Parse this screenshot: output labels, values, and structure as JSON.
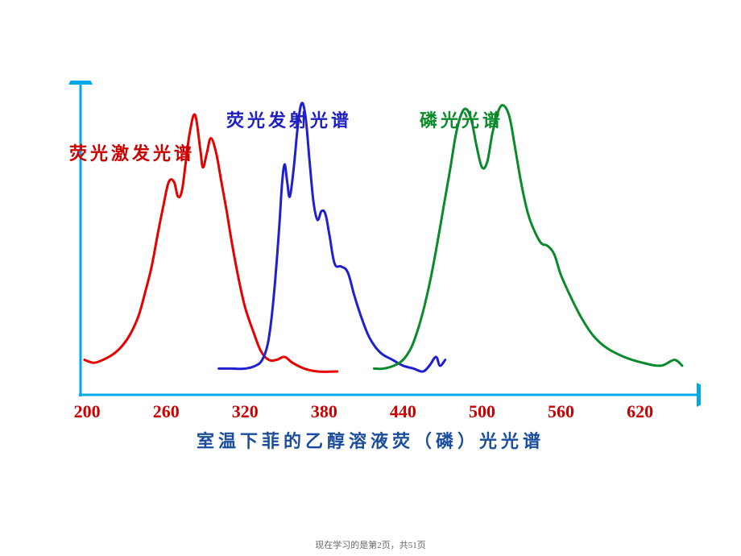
{
  "chart": {
    "type": "line",
    "background_color": "#ffffff",
    "axis_color": "#00a8e8",
    "axis_stroke_width": 3,
    "xlim": [
      195,
      660
    ],
    "ylim": [
      0,
      105
    ],
    "x_ticks": [
      200,
      260,
      320,
      380,
      440,
      500,
      560,
      620
    ],
    "tick_label_color": "#cc0000",
    "tick_label_fontsize": 22,
    "axis_title": "室温下菲的乙醇溶液荧（磷）光光谱",
    "axis_title_color": "#1a4d9e",
    "axis_title_fontsize": 22,
    "series": [
      {
        "name": "excitation",
        "label": "荧光激发光谱",
        "label_color": "#cc0000",
        "label_fontsize": 22,
        "label_top": 173,
        "label_left": 86,
        "stroke": "#e60000",
        "stroke_width": 3,
        "points": [
          [
            198,
            12
          ],
          [
            205,
            11
          ],
          [
            212,
            12
          ],
          [
            220,
            14
          ],
          [
            227,
            17
          ],
          [
            233,
            21
          ],
          [
            239,
            27
          ],
          [
            244,
            35
          ],
          [
            249,
            44
          ],
          [
            254,
            56
          ],
          [
            258,
            65
          ],
          [
            262,
            73
          ],
          [
            266,
            73
          ],
          [
            269,
            68
          ],
          [
            272,
            70
          ],
          [
            275,
            80
          ],
          [
            278,
            90
          ],
          [
            282,
            96
          ],
          [
            286,
            84
          ],
          [
            288,
            78
          ],
          [
            291,
            83
          ],
          [
            294,
            88
          ],
          [
            298,
            83
          ],
          [
            302,
            73
          ],
          [
            306,
            63
          ],
          [
            310,
            52
          ],
          [
            315,
            40
          ],
          [
            320,
            30
          ],
          [
            326,
            22
          ],
          [
            332,
            15
          ],
          [
            338,
            12
          ],
          [
            344,
            12
          ],
          [
            350,
            13
          ],
          [
            356,
            11
          ],
          [
            365,
            9
          ],
          [
            375,
            8
          ],
          [
            390,
            8
          ]
        ]
      },
      {
        "name": "emission",
        "label": "荧光发射光谱",
        "label_color": "#2020c0",
        "label_fontsize": 22,
        "label_top": 132,
        "label_left": 281,
        "stroke": "#2020d0",
        "stroke_width": 3,
        "points": [
          [
            300,
            9
          ],
          [
            310,
            9
          ],
          [
            320,
            9
          ],
          [
            328,
            10
          ],
          [
            333,
            12
          ],
          [
            337,
            17
          ],
          [
            340,
            26
          ],
          [
            343,
            40
          ],
          [
            346,
            58
          ],
          [
            348,
            72
          ],
          [
            350,
            79
          ],
          [
            352,
            73
          ],
          [
            354,
            68
          ],
          [
            357,
            78
          ],
          [
            360,
            92
          ],
          [
            363,
            100
          ],
          [
            366,
            95
          ],
          [
            369,
            80
          ],
          [
            372,
            66
          ],
          [
            375,
            60
          ],
          [
            378,
            63
          ],
          [
            381,
            62
          ],
          [
            384,
            55
          ],
          [
            388,
            45
          ],
          [
            393,
            44
          ],
          [
            398,
            42
          ],
          [
            403,
            34
          ],
          [
            408,
            27
          ],
          [
            413,
            21
          ],
          [
            418,
            17
          ],
          [
            424,
            14
          ],
          [
            432,
            12
          ],
          [
            440,
            10
          ],
          [
            448,
            9
          ],
          [
            455,
            8
          ],
          [
            460,
            10
          ],
          [
            465,
            13
          ],
          [
            468,
            10
          ],
          [
            472,
            12
          ]
        ]
      },
      {
        "name": "phosphorescence",
        "label": "磷光光谱",
        "label_color": "#0a8a2a",
        "label_fontsize": 22,
        "label_top": 132,
        "label_left": 521,
        "stroke": "#0a8a2a",
        "stroke_width": 3,
        "points": [
          [
            418,
            9
          ],
          [
            425,
            9
          ],
          [
            433,
            10
          ],
          [
            440,
            12
          ],
          [
            446,
            16
          ],
          [
            451,
            22
          ],
          [
            456,
            30
          ],
          [
            461,
            40
          ],
          [
            466,
            52
          ],
          [
            471,
            65
          ],
          [
            476,
            78
          ],
          [
            480,
            89
          ],
          [
            484,
            96
          ],
          [
            488,
            98
          ],
          [
            492,
            94
          ],
          [
            496,
            85
          ],
          [
            500,
            78
          ],
          [
            504,
            80
          ],
          [
            508,
            90
          ],
          [
            513,
            98
          ],
          [
            517,
            99
          ],
          [
            521,
            95
          ],
          [
            525,
            85
          ],
          [
            530,
            72
          ],
          [
            535,
            62
          ],
          [
            540,
            56
          ],
          [
            545,
            52
          ],
          [
            550,
            51
          ],
          [
            555,
            48
          ],
          [
            560,
            41
          ],
          [
            568,
            33
          ],
          [
            576,
            26
          ],
          [
            585,
            20
          ],
          [
            595,
            16
          ],
          [
            608,
            13
          ],
          [
            622,
            11
          ],
          [
            636,
            10
          ],
          [
            646,
            12
          ],
          [
            652,
            10
          ]
        ]
      }
    ]
  },
  "footer": "现在学习的是第2页，共51页"
}
